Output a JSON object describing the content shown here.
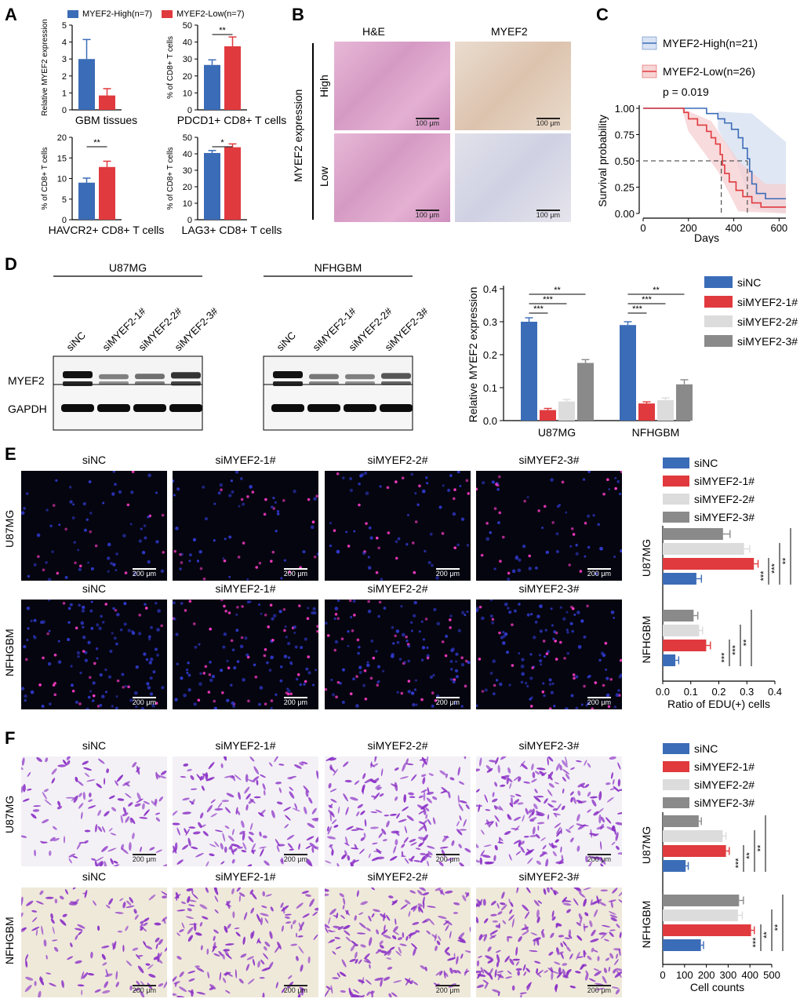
{
  "panels": {
    "A": {
      "letter": "A",
      "legend": [
        {
          "name": "MYEF2-High(n=7)",
          "color": "#3b6cb7"
        },
        {
          "name": "MYEF2-Low(n=7)",
          "color": "#e03a3e"
        }
      ],
      "subplots": [
        {
          "ylabel": "Relative MYEF2 expression",
          "xlabel": "GBM tissues",
          "yticks": [
            "0",
            "1",
            "2",
            "3",
            "4",
            "5"
          ],
          "ylim": [
            0,
            5
          ],
          "values": [
            3.0,
            0.85
          ],
          "errors": [
            1.15,
            0.4
          ],
          "sig": ""
        },
        {
          "ylabel": "% of CD8+ T cells",
          "xlabel": "PDCD1+ CD8+ T cells",
          "yticks": [
            "0",
            "10",
            "20",
            "30",
            "40",
            "50"
          ],
          "ylim": [
            0,
            50
          ],
          "values": [
            26.5,
            37.5
          ],
          "errors": [
            3,
            5.5
          ],
          "sig": "**"
        },
        {
          "ylabel": "% of CD8+ T cells",
          "xlabel": "HAVCR2+ CD8+ T cells",
          "yticks": [
            "0",
            "5",
            "10",
            "15",
            "20"
          ],
          "ylim": [
            0,
            20
          ],
          "values": [
            9.0,
            12.8
          ],
          "errors": [
            1.1,
            1.4
          ],
          "sig": "**"
        },
        {
          "ylabel": "% of CD8+ T cells",
          "xlabel": "LAG3+ CD8+ T cells",
          "yticks": [
            "0",
            "10",
            "20",
            "30",
            "40",
            "50"
          ],
          "ylim": [
            0,
            50
          ],
          "values": [
            40.5,
            44.0
          ],
          "errors": [
            1.5,
            2.0
          ],
          "sig": "*"
        }
      ]
    },
    "B": {
      "letter": "B",
      "col_labels": [
        "H&E",
        "MYEF2"
      ],
      "row_group_label": "MYEF2 expression",
      "row_labels": [
        "High",
        "Low"
      ],
      "scale_label": "100 μm"
    },
    "C": {
      "letter": "C",
      "legend": [
        {
          "name": "MYEF2-High(n=21)",
          "color": "#3b6cb7"
        },
        {
          "name": "MYEF2-Low(n=26)",
          "color": "#e03a3e"
        }
      ],
      "pvalue": "p = 0.019",
      "ylabel": "Survival probability",
      "xlabel": "Days",
      "xticks": [
        "0",
        "200",
        "400",
        "600"
      ],
      "yticks": [
        "0.00",
        "0.25",
        "0.50",
        "0.75",
        "1.00"
      ]
    },
    "D": {
      "letter": "D",
      "blot_groups": [
        "U87MG",
        "NFHGBM"
      ],
      "lanes": [
        "siNC",
        "siMYEF2-1#",
        "siMYEF2-2#",
        "siMYEF2-3#"
      ],
      "blot_rows": [
        "MYEF2",
        "GAPDH"
      ],
      "chart": {
        "ylabel": "Relative MYEF2 expression",
        "yticks": [
          "0.0",
          "0.1",
          "0.2",
          "0.3",
          "0.4"
        ],
        "ylim": [
          0,
          0.4
        ],
        "categories": [
          "U87MG",
          "NFHGBM"
        ],
        "series": [
          {
            "name": "siNC",
            "color": "#3b6cb7",
            "values": [
              0.3,
              0.29
            ],
            "errors": [
              0.012,
              0.01
            ]
          },
          {
            "name": "siMYEF2-1#",
            "color": "#e03a3e",
            "values": [
              0.032,
              0.052
            ],
            "errors": [
              0.005,
              0.005
            ]
          },
          {
            "name": "siMYEF2-2#",
            "color": "#dcdcdc",
            "values": [
              0.058,
              0.062
            ],
            "errors": [
              0.006,
              0.007
            ]
          },
          {
            "name": "siMYEF2-3#",
            "color": "#8a8a8a",
            "values": [
              0.175,
              0.11
            ],
            "errors": [
              0.01,
              0.014
            ]
          }
        ],
        "sig": [
          "***",
          "***",
          "**"
        ]
      }
    },
    "E": {
      "letter": "E",
      "col_labels": [
        "siNC",
        "siMYEF2-1#",
        "siMYEF2-2#",
        "siMYEF2-3#"
      ],
      "row_labels": [
        "U87MG",
        "NFHGBM"
      ],
      "scale_label": "200 μm",
      "chart": {
        "xlabel": "Ratio of EDU(+) cells",
        "xticks": [
          "0.0",
          "0.1",
          "0.2",
          "0.3",
          "0.4"
        ],
        "xlim": [
          0,
          0.4
        ],
        "categories": [
          "U87MG",
          "NFHGBM"
        ],
        "series": [
          {
            "name": "siNC",
            "color": "#3b6cb7",
            "values": [
              0.12,
              0.045
            ],
            "errors": [
              0.018,
              0.012
            ]
          },
          {
            "name": "siMYEF2-1#",
            "color": "#e03a3e",
            "values": [
              0.325,
              0.155
            ],
            "errors": [
              0.015,
              0.015
            ]
          },
          {
            "name": "siMYEF2-2#",
            "color": "#dcdcdc",
            "values": [
              0.29,
              0.13
            ],
            "errors": [
              0.02,
              0.012
            ]
          },
          {
            "name": "siMYEF2-3#",
            "color": "#8a8a8a",
            "values": [
              0.215,
              0.11
            ],
            "errors": [
              0.025,
              0.015
            ]
          }
        ],
        "sig": [
          "***",
          "***",
          "**"
        ]
      }
    },
    "F": {
      "letter": "F",
      "col_labels": [
        "siNC",
        "siMYEF2-1#",
        "siMYEF2-2#",
        "siMYEF2-3#"
      ],
      "row_labels": [
        "U87MG",
        "NFHGBM"
      ],
      "scale_label": "200 μm",
      "chart": {
        "xlabel": "Cell counts",
        "xticks": [
          "0",
          "100",
          "200",
          "300",
          "400",
          "500"
        ],
        "xlim": [
          0,
          500
        ],
        "categories": [
          "U87MG",
          "NFHGBM"
        ],
        "series": [
          {
            "name": "siNC",
            "color": "#3b6cb7",
            "values": [
              105,
              175
            ],
            "errors": [
              12,
              12
            ]
          },
          {
            "name": "siMYEF2-1#",
            "color": "#e03a3e",
            "values": [
              290,
              405
            ],
            "errors": [
              15,
              15
            ]
          },
          {
            "name": "siMYEF2-2#",
            "color": "#dcdcdc",
            "values": [
              275,
              345
            ],
            "errors": [
              15,
              20
            ]
          },
          {
            "name": "siMYEF2-3#",
            "color": "#8a8a8a",
            "values": [
              165,
              350
            ],
            "errors": [
              12,
              20
            ]
          }
        ],
        "sig": [
          "***",
          "**",
          "**"
        ]
      }
    }
  }
}
